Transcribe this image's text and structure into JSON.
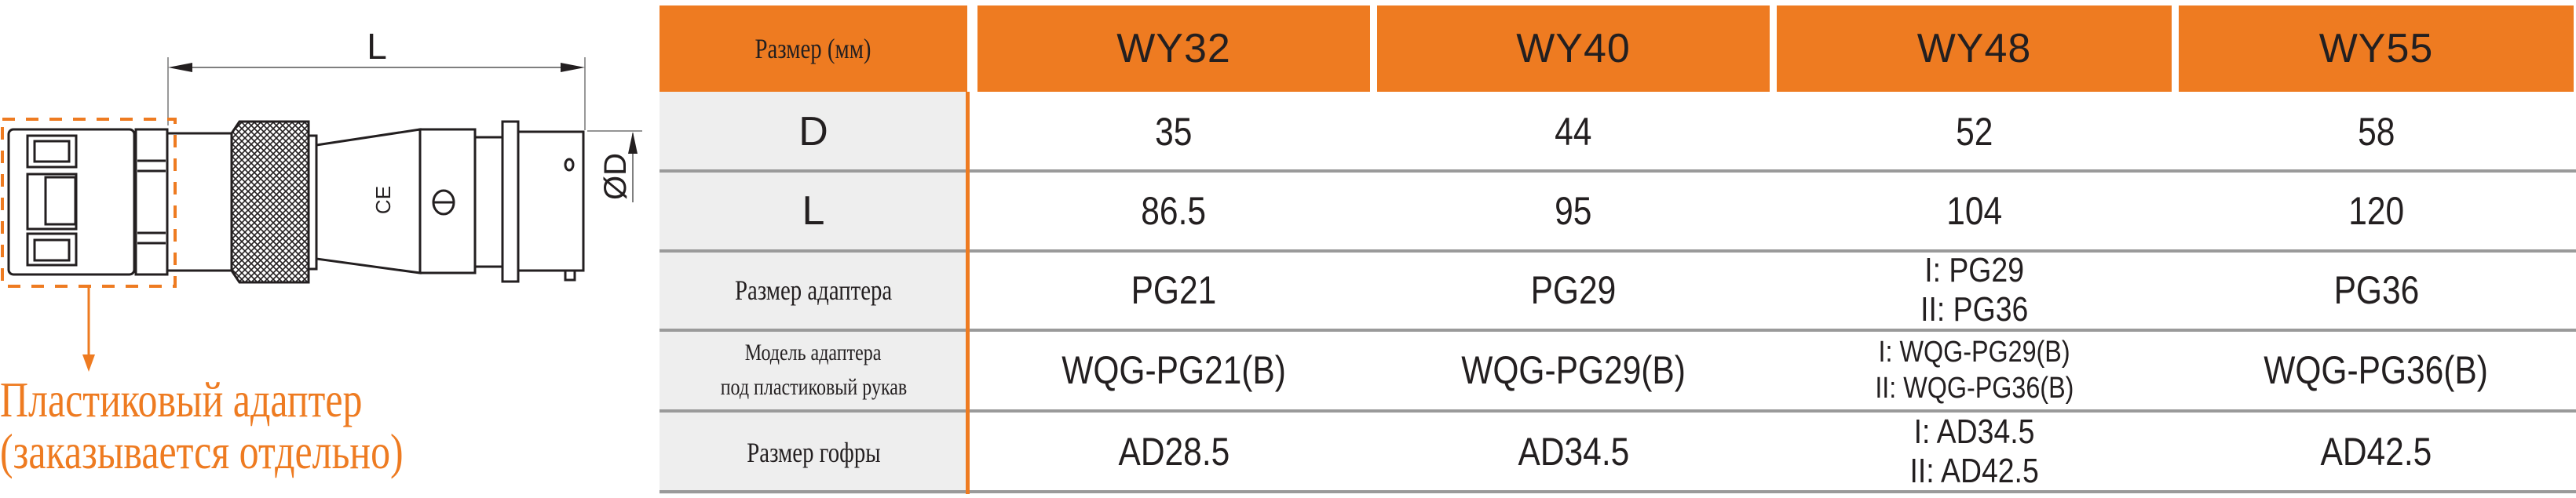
{
  "drawing": {
    "dimension_length_label": "L",
    "dimension_diameter_label": "ØD",
    "callout_lines": [
      "Пластиковый адаптер",
      "(заказывается отдельно)"
    ],
    "accent_color": "#ee7b21"
  },
  "table": {
    "header_label": "Размер (мм)",
    "models": [
      "WY32",
      "WY40",
      "WY48",
      "WY55"
    ],
    "rows": [
      {
        "label": [
          "D"
        ],
        "values": [
          [
            "35"
          ],
          [
            "44"
          ],
          [
            "52"
          ],
          [
            "58"
          ]
        ]
      },
      {
        "label": [
          "L"
        ],
        "values": [
          [
            "86.5"
          ],
          [
            "95"
          ],
          [
            "104"
          ],
          [
            "120"
          ]
        ]
      },
      {
        "label": [
          "Размер адаптера"
        ],
        "values": [
          [
            "PG21"
          ],
          [
            "PG29"
          ],
          [
            "I: PG29",
            "II: PG36"
          ],
          [
            "PG36"
          ]
        ]
      },
      {
        "label": [
          "Модель адаптера",
          "под пластиковый рукав"
        ],
        "values": [
          [
            "WQG-PG21(B)"
          ],
          [
            "WQG-PG29(B)"
          ],
          [
            "I: WQG-PG29(B)",
            "II: WQG-PG36(B)"
          ],
          [
            "WQG-PG36(B)"
          ]
        ]
      },
      {
        "label": [
          "Размер гофры"
        ],
        "values": [
          [
            "AD28.5"
          ],
          [
            "AD34.5"
          ],
          [
            "I: AD34.5",
            "II: AD42.5"
          ],
          [
            "AD42.5"
          ]
        ]
      }
    ],
    "header_color": "#ee7b21",
    "label_bg_color": "#eeeeee",
    "divider_color": "#9a9a9a"
  }
}
